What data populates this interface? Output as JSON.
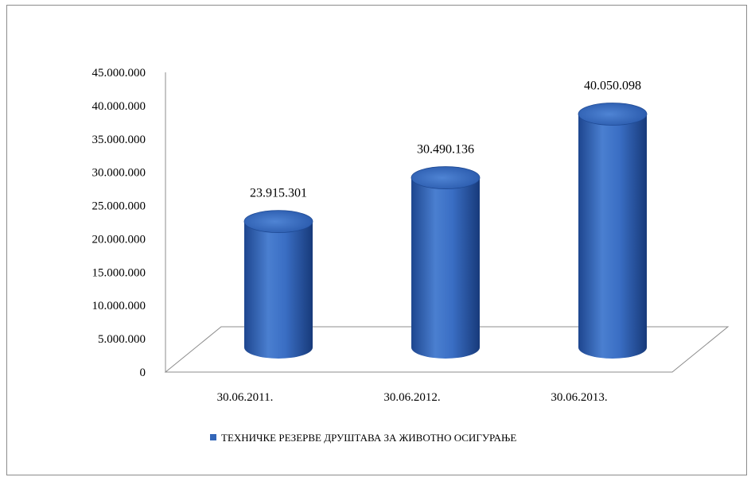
{
  "chart_data": {
    "type": "bar",
    "style": "3d-cylinder",
    "categories": [
      "30.06.2011.",
      "30.06.2012.",
      "30.06.2013."
    ],
    "series": [
      {
        "name": "ТЕХНИЧКЕ РЕЗЕРВЕ ДРУШТАВА ЗА ЖИВОТНО ОСИГУРАЊЕ",
        "values": [
          23915301,
          30490136,
          40050098
        ],
        "value_labels": [
          "23.915.301",
          "30.490.136",
          "40.050.098"
        ],
        "color": "#3366b8"
      }
    ],
    "ylim": [
      0,
      45000000
    ],
    "y_ticks": [
      0,
      5000000,
      10000000,
      15000000,
      20000000,
      25000000,
      30000000,
      35000000,
      40000000,
      45000000
    ],
    "y_tick_labels": [
      "0",
      "5.000.000",
      "10.000.000",
      "15.000.000",
      "20.000.000",
      "25.000.000",
      "30.000.000",
      "35.000.000",
      "40.000.000",
      "45.000.000"
    ],
    "legend_position": "bottom",
    "grid": false
  }
}
